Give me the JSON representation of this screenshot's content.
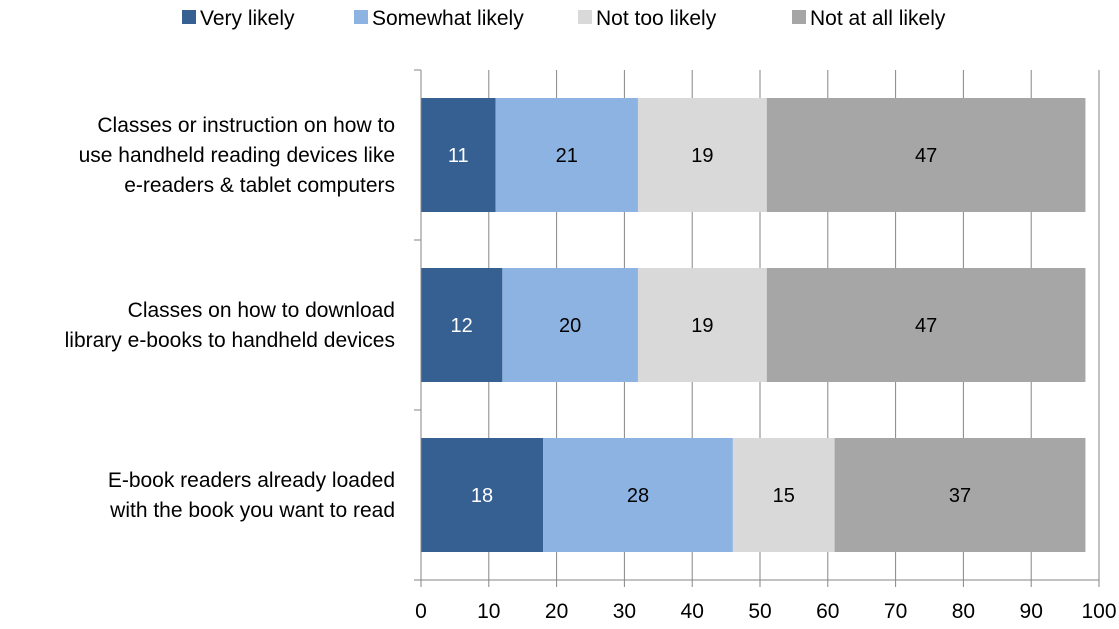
{
  "chart_data": {
    "type": "bar",
    "orientation": "horizontal",
    "stacked": true,
    "categories": [
      [
        "Classes or instruction on how to",
        "use handheld reading devices like",
        "e-readers & tablet computers"
      ],
      [
        "Classes on how to download",
        "library e-books to handheld devices"
      ],
      [
        "E-book readers already loaded",
        "with the book you want to read"
      ]
    ],
    "series": [
      {
        "name": "Very likely",
        "color": "#366092",
        "values": [
          11,
          12,
          18
        ]
      },
      {
        "name": "Somewhat likely",
        "color": "#8db3e2",
        "values": [
          21,
          20,
          28
        ]
      },
      {
        "name": "Not too likely",
        "color": "#d9d9d9",
        "values": [
          19,
          19,
          15
        ]
      },
      {
        "name": "Not at all likely",
        "color": "#a6a6a6",
        "values": [
          47,
          47,
          37
        ]
      }
    ],
    "xlim": [
      0,
      100
    ],
    "xticks": [
      0,
      10,
      20,
      30,
      40,
      50,
      60,
      70,
      80,
      90,
      100
    ],
    "legend_position": "top",
    "grid": true,
    "label_colors": {
      "dark_series": "#ffffff",
      "light_series": "#000000"
    }
  }
}
